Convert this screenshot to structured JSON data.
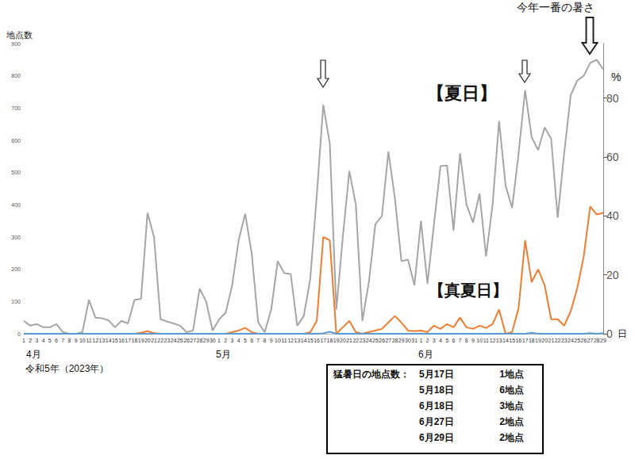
{
  "chart_data": {
    "type": "line",
    "categories": [
      "1",
      "2",
      "3",
      "4",
      "5",
      "6",
      "7",
      "8",
      "9",
      "10",
      "11",
      "12",
      "13",
      "14",
      "15",
      "16",
      "17",
      "18",
      "19",
      "20",
      "21",
      "22",
      "23",
      "24",
      "25",
      "26",
      "27",
      "28",
      "29",
      "30",
      "1",
      "2",
      "3",
      "4",
      "5",
      "6",
      "7",
      "8",
      "9",
      "10",
      "11",
      "12",
      "13",
      "14",
      "15",
      "16",
      "17",
      "18",
      "19",
      "20",
      "21",
      "22",
      "23",
      "24",
      "25",
      "26",
      "27",
      "28",
      "29",
      "30",
      "31",
      "1",
      "2",
      "3",
      "4",
      "5",
      "6",
      "7",
      "8",
      "9",
      "10",
      "11",
      "12",
      "13",
      "14",
      "15",
      "16",
      "17",
      "18",
      "19",
      "20",
      "21",
      "22",
      "23",
      "24",
      "25",
      "26",
      "27",
      "28",
      "29"
    ],
    "x_groups": [
      "4月",
      "5月",
      "6月"
    ],
    "x_note": "令和5年（2023年）",
    "xlabel": "日",
    "ylabel": "地点数",
    "y2label": "%",
    "ylim": [
      0,
      900
    ],
    "yticks": [
      0,
      100,
      200,
      300,
      400,
      500,
      600,
      700,
      800,
      900
    ],
    "y2lim": [
      0,
      98.5
    ],
    "y2ticks": [
      0,
      20,
      40,
      60,
      80
    ],
    "grid": false,
    "series": [
      {
        "name": "【夏日】",
        "color": "#a5a5a5",
        "values": [
          40,
          25,
          30,
          20,
          20,
          30,
          5,
          0,
          0,
          5,
          105,
          50,
          48,
          42,
          20,
          40,
          32,
          105,
          108,
          375,
          300,
          45,
          38,
          32,
          25,
          5,
          10,
          140,
          100,
          10,
          45,
          65,
          150,
          290,
          372,
          250,
          35,
          5,
          75,
          225,
          188,
          185,
          25,
          55,
          170,
          430,
          710,
          590,
          75,
          300,
          505,
          400,
          40,
          160,
          340,
          365,
          565,
          420,
          225,
          230,
          150,
          350,
          155,
          340,
          520,
          522,
          320,
          560,
          400,
          345,
          435,
          240,
          400,
          660,
          460,
          390,
          560,
          755,
          610,
          570,
          640,
          605,
          360,
          560,
          740,
          785,
          800,
          840,
          850,
          820
        ]
      },
      {
        "name": "【真夏日】",
        "color": "#ed7d31",
        "values": [
          0,
          0,
          0,
          0,
          0,
          0,
          0,
          0,
          0,
          0,
          0,
          0,
          0,
          0,
          0,
          0,
          0,
          0,
          3,
          8,
          2,
          0,
          0,
          0,
          0,
          0,
          0,
          0,
          0,
          0,
          0,
          0,
          5,
          10,
          18,
          5,
          0,
          0,
          0,
          0,
          0,
          0,
          0,
          0,
          5,
          40,
          300,
          290,
          0,
          20,
          40,
          5,
          0,
          5,
          10,
          15,
          35,
          55,
          35,
          10,
          8,
          10,
          5,
          25,
          15,
          30,
          20,
          50,
          20,
          15,
          25,
          18,
          30,
          75,
          0,
          5,
          80,
          290,
          160,
          200,
          150,
          45,
          45,
          25,
          70,
          140,
          240,
          395,
          370,
          375
        ]
      },
      {
        "color": "#5b9bd5",
        "values": [
          0,
          0,
          0,
          0,
          0,
          0,
          0,
          0,
          0,
          0,
          0,
          0,
          0,
          0,
          0,
          0,
          0,
          0,
          0,
          0,
          0,
          0,
          0,
          0,
          0,
          0,
          0,
          0,
          0,
          0,
          0,
          0,
          0,
          0,
          0,
          0,
          0,
          0,
          0,
          0,
          0,
          0,
          0,
          0,
          0,
          0,
          1,
          6,
          0,
          0,
          0,
          0,
          0,
          0,
          0,
          0,
          0,
          0,
          0,
          0,
          0,
          0,
          0,
          0,
          0,
          0,
          0,
          0,
          0,
          0,
          0,
          0,
          0,
          0,
          0,
          0,
          0,
          0,
          3,
          0,
          0,
          0,
          0,
          0,
          0,
          0,
          0,
          2,
          0,
          2
        ]
      }
    ],
    "annotations": [
      "今年一番の暑さ"
    ],
    "table": {
      "title": "猛暑日の地点数：",
      "rows": [
        {
          "date": "5月17日",
          "count": 1,
          "unit": "地点"
        },
        {
          "date": "5月18日",
          "count": 6,
          "unit": "地点"
        },
        {
          "date": "6月18日",
          "count": 3,
          "unit": "地点"
        },
        {
          "date": "6月27日",
          "count": 2,
          "unit": "地点"
        },
        {
          "date": "6月29日",
          "count": 2,
          "unit": "地点"
        }
      ]
    }
  }
}
